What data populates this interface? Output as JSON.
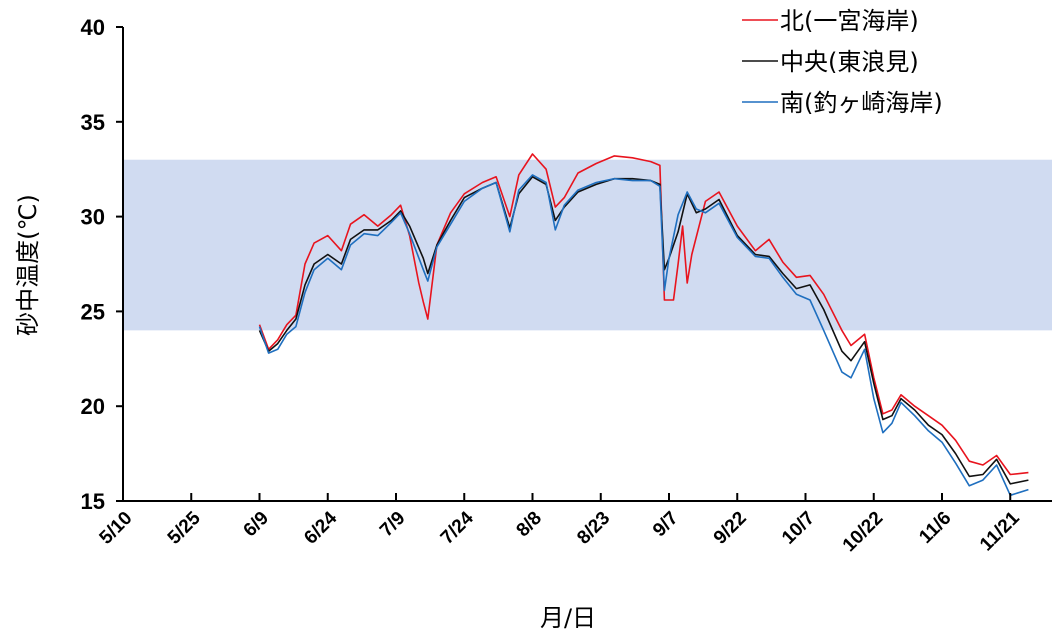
{
  "chart_data": {
    "type": "line",
    "title": "",
    "xlabel": "月/日",
    "ylabel": "砂中温度(℃)",
    "x_ticks": [
      "5/10",
      "5/25",
      "6/9",
      "6/24",
      "7/9",
      "7/24",
      "8/8",
      "8/23",
      "9/7",
      "9/22",
      "10/7",
      "10/22",
      "11/6",
      "11/21"
    ],
    "ylim": [
      15,
      40
    ],
    "y_ticks": [
      15,
      20,
      25,
      30,
      35,
      40
    ],
    "band": {
      "y_min": 24,
      "y_max": 33,
      "color": "#d0dbf1"
    },
    "legend_position": "top-right",
    "grid": false,
    "series": [
      {
        "name": "北(一宮海岸)",
        "color": "#e8141e",
        "points": [
          [
            "6/9",
            24.3
          ],
          [
            "6/11",
            23.0
          ],
          [
            "6/13",
            23.5
          ],
          [
            "6/15",
            24.3
          ],
          [
            "6/17",
            24.8
          ],
          [
            "6/19",
            27.5
          ],
          [
            "6/21",
            28.6
          ],
          [
            "6/24",
            29.0
          ],
          [
            "6/27",
            28.2
          ],
          [
            "6/29",
            29.6
          ],
          [
            "7/2",
            30.1
          ],
          [
            "7/5",
            29.5
          ],
          [
            "7/8",
            30.1
          ],
          [
            "7/10",
            30.6
          ],
          [
            "7/12",
            29.0
          ],
          [
            "7/14",
            26.5
          ],
          [
            "7/15",
            25.5
          ],
          [
            "7/16",
            24.6
          ],
          [
            "7/18",
            28.5
          ],
          [
            "7/21",
            30.2
          ],
          [
            "7/24",
            31.2
          ],
          [
            "7/28",
            31.8
          ],
          [
            "7/31",
            32.1
          ],
          [
            "8/3",
            30.0
          ],
          [
            "8/5",
            32.2
          ],
          [
            "8/8",
            33.3
          ],
          [
            "8/11",
            32.5
          ],
          [
            "8/13",
            30.5
          ],
          [
            "8/15",
            31.0
          ],
          [
            "8/18",
            32.3
          ],
          [
            "8/22",
            32.8
          ],
          [
            "8/26",
            33.2
          ],
          [
            "8/30",
            33.1
          ],
          [
            "9/3",
            32.9
          ],
          [
            "9/5",
            32.7
          ],
          [
            "9/6",
            25.6
          ],
          [
            "9/8",
            25.6
          ],
          [
            "9/9",
            27.5
          ],
          [
            "9/10",
            29.5
          ],
          [
            "9/11",
            26.5
          ],
          [
            "9/12",
            28.0
          ],
          [
            "9/15",
            30.8
          ],
          [
            "9/18",
            31.3
          ],
          [
            "9/22",
            29.5
          ],
          [
            "9/26",
            28.2
          ],
          [
            "9/29",
            28.8
          ],
          [
            "10/2",
            27.6
          ],
          [
            "10/5",
            26.8
          ],
          [
            "10/8",
            26.9
          ],
          [
            "10/11",
            25.9
          ],
          [
            "10/15",
            24.0
          ],
          [
            "10/17",
            23.2
          ],
          [
            "10/20",
            23.8
          ],
          [
            "10/22",
            21.5
          ],
          [
            "10/24",
            19.6
          ],
          [
            "10/26",
            19.8
          ],
          [
            "10/28",
            20.6
          ],
          [
            "10/31",
            20.0
          ],
          [
            "11/3",
            19.5
          ],
          [
            "11/6",
            19.0
          ],
          [
            "11/9",
            18.2
          ],
          [
            "11/12",
            17.1
          ],
          [
            "11/15",
            16.9
          ],
          [
            "11/18",
            17.4
          ],
          [
            "11/21",
            16.4
          ],
          [
            "11/25",
            16.5
          ]
        ]
      },
      {
        "name": "中央(東浪見)",
        "color": "#111111",
        "points": [
          [
            "6/9",
            24.0
          ],
          [
            "6/11",
            22.9
          ],
          [
            "6/13",
            23.3
          ],
          [
            "6/15",
            24.0
          ],
          [
            "6/17",
            24.6
          ],
          [
            "6/19",
            26.4
          ],
          [
            "6/21",
            27.5
          ],
          [
            "6/24",
            28.0
          ],
          [
            "6/27",
            27.5
          ],
          [
            "6/29",
            28.8
          ],
          [
            "7/2",
            29.3
          ],
          [
            "7/5",
            29.3
          ],
          [
            "7/8",
            29.8
          ],
          [
            "7/10",
            30.3
          ],
          [
            "7/12",
            29.5
          ],
          [
            "7/15",
            27.8
          ],
          [
            "7/16",
            27.0
          ],
          [
            "7/18",
            28.5
          ],
          [
            "7/21",
            29.8
          ],
          [
            "7/24",
            31.0
          ],
          [
            "7/28",
            31.5
          ],
          [
            "7/31",
            31.8
          ],
          [
            "8/3",
            29.4
          ],
          [
            "8/5",
            31.2
          ],
          [
            "8/8",
            32.1
          ],
          [
            "8/11",
            31.7
          ],
          [
            "8/13",
            29.8
          ],
          [
            "8/15",
            30.5
          ],
          [
            "8/18",
            31.3
          ],
          [
            "8/22",
            31.7
          ],
          [
            "8/26",
            32.0
          ],
          [
            "8/30",
            32.0
          ],
          [
            "9/3",
            31.9
          ],
          [
            "9/5",
            31.7
          ],
          [
            "9/6",
            27.2
          ],
          [
            "9/7",
            27.8
          ],
          [
            "9/9",
            29.2
          ],
          [
            "9/11",
            31.2
          ],
          [
            "9/13",
            30.2
          ],
          [
            "9/15",
            30.4
          ],
          [
            "9/18",
            30.9
          ],
          [
            "9/22",
            29.0
          ],
          [
            "9/26",
            28.0
          ],
          [
            "9/29",
            27.9
          ],
          [
            "10/2",
            27.0
          ],
          [
            "10/5",
            26.2
          ],
          [
            "10/8",
            26.4
          ],
          [
            "10/11",
            25.1
          ],
          [
            "10/15",
            22.9
          ],
          [
            "10/17",
            22.4
          ],
          [
            "10/20",
            23.4
          ],
          [
            "10/22",
            21.2
          ],
          [
            "10/24",
            19.3
          ],
          [
            "10/26",
            19.5
          ],
          [
            "10/28",
            20.4
          ],
          [
            "10/31",
            19.8
          ],
          [
            "11/3",
            19.0
          ],
          [
            "11/6",
            18.5
          ],
          [
            "11/9",
            17.5
          ],
          [
            "11/12",
            16.3
          ],
          [
            "11/15",
            16.4
          ],
          [
            "11/18",
            17.2
          ],
          [
            "11/21",
            15.9
          ],
          [
            "11/25",
            16.1
          ]
        ]
      },
      {
        "name": "南(釣ヶ崎海岸)",
        "color": "#1f6fbf",
        "points": [
          [
            "6/9",
            24.2
          ],
          [
            "6/11",
            22.8
          ],
          [
            "6/13",
            23.0
          ],
          [
            "6/15",
            23.8
          ],
          [
            "6/17",
            24.2
          ],
          [
            "6/19",
            26.0
          ],
          [
            "6/21",
            27.2
          ],
          [
            "6/24",
            27.8
          ],
          [
            "6/27",
            27.2
          ],
          [
            "6/29",
            28.5
          ],
          [
            "7/2",
            29.1
          ],
          [
            "7/5",
            29.0
          ],
          [
            "7/8",
            29.7
          ],
          [
            "7/10",
            30.2
          ],
          [
            "7/12",
            29.1
          ],
          [
            "7/15",
            27.2
          ],
          [
            "7/16",
            26.6
          ],
          [
            "7/18",
            28.4
          ],
          [
            "7/21",
            29.6
          ],
          [
            "7/24",
            30.8
          ],
          [
            "7/28",
            31.5
          ],
          [
            "7/31",
            31.8
          ],
          [
            "8/3",
            29.2
          ],
          [
            "8/5",
            31.4
          ],
          [
            "8/8",
            32.2
          ],
          [
            "8/11",
            31.8
          ],
          [
            "8/13",
            29.3
          ],
          [
            "8/15",
            30.6
          ],
          [
            "8/18",
            31.4
          ],
          [
            "8/22",
            31.8
          ],
          [
            "8/26",
            32.0
          ],
          [
            "8/30",
            31.9
          ],
          [
            "9/3",
            31.9
          ],
          [
            "9/5",
            31.6
          ],
          [
            "9/6",
            26.1
          ],
          [
            "9/7",
            27.8
          ],
          [
            "9/9",
            30.1
          ],
          [
            "9/11",
            31.3
          ],
          [
            "9/13",
            30.4
          ],
          [
            "9/15",
            30.2
          ],
          [
            "9/18",
            30.7
          ],
          [
            "9/22",
            28.9
          ],
          [
            "9/26",
            27.9
          ],
          [
            "9/29",
            27.8
          ],
          [
            "10/2",
            26.8
          ],
          [
            "10/5",
            25.9
          ],
          [
            "10/8",
            25.6
          ],
          [
            "10/11",
            24.0
          ],
          [
            "10/15",
            21.8
          ],
          [
            "10/17",
            21.5
          ],
          [
            "10/20",
            23.0
          ],
          [
            "10/22",
            20.4
          ],
          [
            "10/24",
            18.6
          ],
          [
            "10/26",
            19.1
          ],
          [
            "10/28",
            20.2
          ],
          [
            "10/31",
            19.5
          ],
          [
            "11/3",
            18.7
          ],
          [
            "11/6",
            18.1
          ],
          [
            "11/9",
            17.0
          ],
          [
            "11/12",
            15.8
          ],
          [
            "11/15",
            16.1
          ],
          [
            "11/18",
            16.9
          ],
          [
            "11/21",
            15.3
          ],
          [
            "11/25",
            15.6
          ]
        ]
      }
    ]
  }
}
